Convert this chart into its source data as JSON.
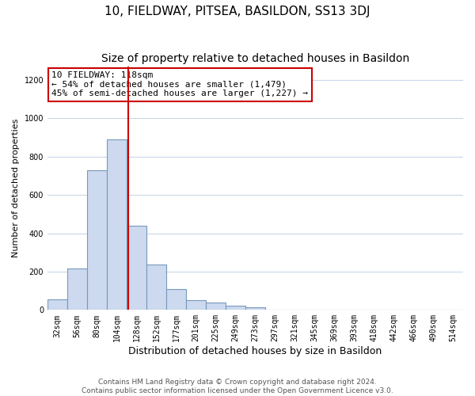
{
  "title": "10, FIELDWAY, PITSEA, BASILDON, SS13 3DJ",
  "subtitle": "Size of property relative to detached houses in Basildon",
  "xlabel": "Distribution of detached houses by size in Basildon",
  "ylabel": "Number of detached properties",
  "bar_labels": [
    "32sqm",
    "56sqm",
    "80sqm",
    "104sqm",
    "128sqm",
    "152sqm",
    "177sqm",
    "201sqm",
    "225sqm",
    "249sqm",
    "273sqm",
    "297sqm",
    "321sqm",
    "345sqm",
    "369sqm",
    "393sqm",
    "418sqm",
    "442sqm",
    "466sqm",
    "490sqm",
    "514sqm"
  ],
  "bar_values": [
    55,
    215,
    730,
    890,
    440,
    235,
    107,
    50,
    40,
    22,
    15,
    0,
    0,
    0,
    0,
    0,
    0,
    0,
    0,
    0,
    0
  ],
  "bar_color": "#ccd9ee",
  "bar_edge_color": "#7799bb",
  "annotation_box_text": "10 FIELDWAY: 118sqm\n← 54% of detached houses are smaller (1,479)\n45% of semi-detached houses are larger (1,227) →",
  "annotation_box_color": "#ffffff",
  "annotation_box_edge_color": "#cc0000",
  "vline_color": "#cc0000",
  "vline_x": 3.5,
  "ylim": [
    0,
    1270
  ],
  "yticks": [
    0,
    200,
    400,
    600,
    800,
    1000,
    1200
  ],
  "footer_text": "Contains HM Land Registry data © Crown copyright and database right 2024.\nContains public sector information licensed under the Open Government Licence v3.0.",
  "background_color": "#ffffff",
  "grid_color": "#c8d8e8",
  "title_fontsize": 11,
  "subtitle_fontsize": 10,
  "xlabel_fontsize": 9,
  "ylabel_fontsize": 8,
  "tick_fontsize": 7,
  "annotation_fontsize": 8,
  "footer_fontsize": 6.5
}
